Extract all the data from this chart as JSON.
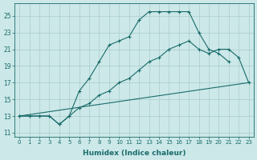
{
  "xlabel": "Humidex (Indice chaleur)",
  "background_color": "#cce8e8",
  "grid_color": "#b8d8d8",
  "line_color": "#1a6b6b",
  "xlim": [
    -0.5,
    23.5
  ],
  "ylim": [
    10.5,
    26.5
  ],
  "xticks": [
    0,
    1,
    2,
    3,
    4,
    5,
    6,
    7,
    8,
    9,
    10,
    11,
    12,
    13,
    14,
    15,
    16,
    17,
    18,
    19,
    20,
    21,
    22,
    23
  ],
  "yticks": [
    11,
    13,
    15,
    17,
    19,
    21,
    23,
    25
  ],
  "line1_x": [
    0,
    1,
    2,
    3,
    4,
    5,
    6,
    7,
    8,
    9,
    10,
    11,
    12,
    13,
    14,
    15,
    16,
    17,
    18,
    19,
    20,
    21
  ],
  "line1_y": [
    13,
    13,
    13,
    13,
    12,
    13,
    16,
    17.5,
    19.5,
    21.5,
    22,
    22.5,
    24.5,
    25.5,
    25.5,
    25.5,
    25.5,
    25.5,
    23,
    21,
    20.5,
    19.5
  ],
  "line2_x": [
    0,
    1,
    2,
    3,
    4,
    5,
    6,
    7,
    8,
    9,
    10,
    11,
    12,
    13,
    14,
    15,
    16,
    17,
    18,
    19,
    20,
    21,
    22,
    23
  ],
  "line2_y": [
    13,
    13,
    13,
    13,
    12,
    13,
    14,
    14.5,
    15.5,
    16,
    17,
    17.5,
    18.5,
    19.5,
    20,
    21,
    21.5,
    22,
    21,
    20.5,
    21,
    21,
    20,
    17
  ],
  "line3_x": [
    0,
    23
  ],
  "line3_y": [
    13,
    17
  ]
}
